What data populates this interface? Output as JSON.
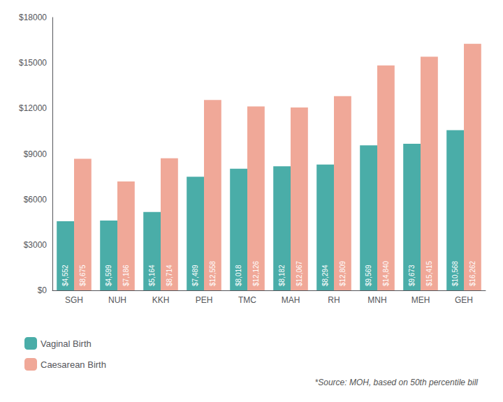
{
  "chart_data": {
    "type": "bar",
    "categories": [
      "SGH",
      "NUH",
      "KKH",
      "PEH",
      "TMC",
      "MAH",
      "RH",
      "MNH",
      "MEH",
      "GEH"
    ],
    "series": [
      {
        "name": "Vaginal Birth",
        "color": "#4aada8",
        "values": [
          4552,
          4599,
          5164,
          7489,
          8018,
          8182,
          8294,
          9569,
          9673,
          10568
        ],
        "value_labels": [
          "$4,552",
          "$4,599",
          "$5,164",
          "$7,489",
          "$8,018",
          "$8,182",
          "$8,294",
          "$9,569",
          "$9,673",
          "$10,568"
        ]
      },
      {
        "name": "Caesarean Birth",
        "color": "#f0a898",
        "values": [
          8675,
          7186,
          8714,
          12558,
          12126,
          12067,
          12809,
          14840,
          15415,
          16262
        ],
        "value_labels": [
          "$8,675",
          "$7,186",
          "$8,714",
          "$12,558",
          "$12,126",
          "$12,067",
          "$12,809",
          "$14,840",
          "$15,415",
          "$16,262"
        ]
      }
    ],
    "ylim": [
      0,
      18000
    ],
    "yticks": [
      {
        "value": 0,
        "label": "$0"
      },
      {
        "value": 3000,
        "label": "$3000"
      },
      {
        "value": 6000,
        "label": "$6000"
      },
      {
        "value": 9000,
        "label": "$9000"
      },
      {
        "value": 12000,
        "label": "$12000"
      },
      {
        "value": 15000,
        "label": "$15000"
      },
      {
        "value": 18000,
        "label": "$18000"
      }
    ],
    "grid": false,
    "legend": "lower left",
    "data_labels": true,
    "annotations": [
      "*Source: MOH, based on 50th percentile bill"
    ]
  }
}
